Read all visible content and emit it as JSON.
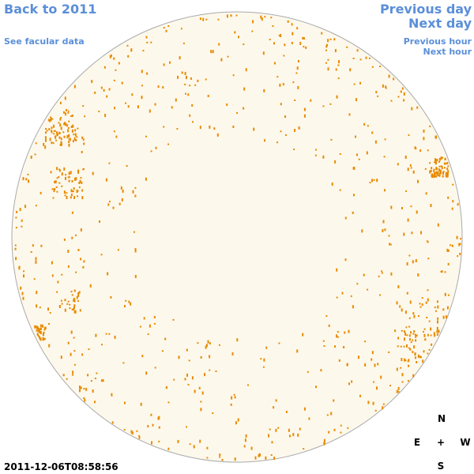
{
  "links": {
    "back": "Back to 2011",
    "facular": "See facular data",
    "previous_day": "Previous day",
    "next_day": "Next day",
    "previous_hour": "Previous hour",
    "next_hour": "Next hour"
  },
  "timestamp": "2011-12-06T08:58:56",
  "compass": {
    "north": "N",
    "east": "E",
    "center": "+",
    "west": "W",
    "south": "S"
  }
}
